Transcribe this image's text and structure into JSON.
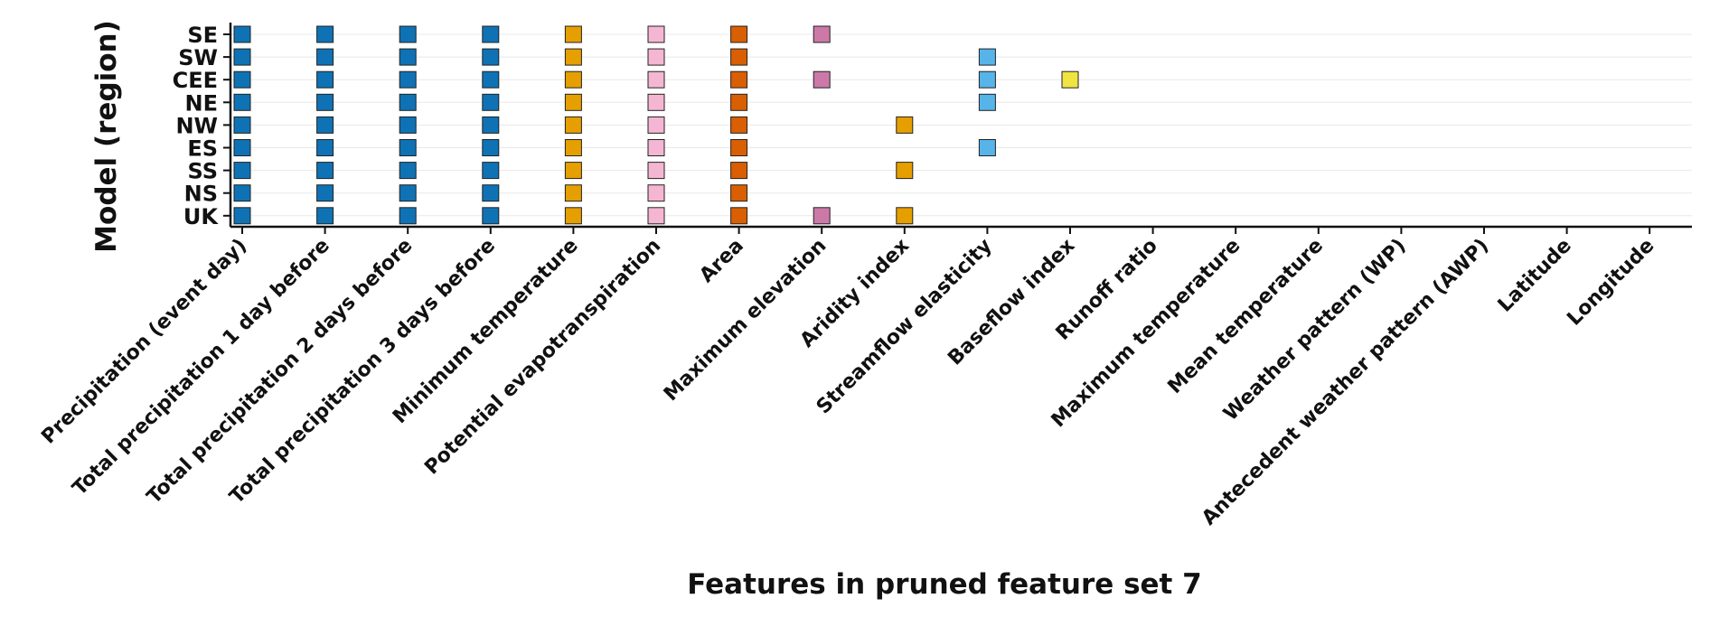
{
  "chart_data": {
    "type": "scatter",
    "title": "",
    "xlabel": "Features in pruned feature set 7",
    "ylabel": "Model (region)",
    "grid": "horizontal",
    "categories_x": [
      "Precipitation (event day)",
      "Total precipitation 1 day before",
      "Total precipitation 2 days before",
      "Total precipitation 3 days before",
      "Minimum temperature",
      "Potential evapotranspiration",
      "Area",
      "Maximum elevation",
      "Aridity index",
      "Streamflow elasticity",
      "Baseflow index",
      "Runoff ratio",
      "Maximum temperature",
      "Mean temperature",
      "Weather pattern (WP)",
      "Antecedent weather pattern (AWP)",
      "Latitude",
      "Longitude"
    ],
    "categories_y": [
      "SE",
      "SW",
      "CEE",
      "NE",
      "NW",
      "ES",
      "SS",
      "NS",
      "UK"
    ],
    "feature_colors": [
      "#0f72b5",
      "#0f72b5",
      "#0f72b5",
      "#0f72b5",
      "#e69f00",
      "#f5b6d3",
      "#d95f02",
      "#cc79a7",
      "#e69f00",
      "#56b4e9",
      "#f0e442",
      "#999999",
      "#999999",
      "#999999",
      "#999999",
      "#999999",
      "#999999",
      "#999999"
    ],
    "points": [
      {
        "model": "SE",
        "features": [
          "Precipitation (event day)",
          "Total precipitation 1 day before",
          "Total precipitation 2 days before",
          "Total precipitation 3 days before",
          "Minimum temperature",
          "Potential evapotranspiration",
          "Area",
          "Maximum elevation"
        ]
      },
      {
        "model": "SW",
        "features": [
          "Precipitation (event day)",
          "Total precipitation 1 day before",
          "Total precipitation 2 days before",
          "Total precipitation 3 days before",
          "Minimum temperature",
          "Potential evapotranspiration",
          "Area",
          "Streamflow elasticity"
        ]
      },
      {
        "model": "CEE",
        "features": [
          "Precipitation (event day)",
          "Total precipitation 1 day before",
          "Total precipitation 2 days before",
          "Total precipitation 3 days before",
          "Minimum temperature",
          "Potential evapotranspiration",
          "Area",
          "Maximum elevation",
          "Streamflow elasticity",
          "Baseflow index"
        ]
      },
      {
        "model": "NE",
        "features": [
          "Precipitation (event day)",
          "Total precipitation 1 day before",
          "Total precipitation 2 days before",
          "Total precipitation 3 days before",
          "Minimum temperature",
          "Potential evapotranspiration",
          "Area",
          "Streamflow elasticity"
        ]
      },
      {
        "model": "NW",
        "features": [
          "Precipitation (event day)",
          "Total precipitation 1 day before",
          "Total precipitation 2 days before",
          "Total precipitation 3 days before",
          "Minimum temperature",
          "Potential evapotranspiration",
          "Area",
          "Aridity index"
        ]
      },
      {
        "model": "ES",
        "features": [
          "Precipitation (event day)",
          "Total precipitation 1 day before",
          "Total precipitation 2 days before",
          "Total precipitation 3 days before",
          "Minimum temperature",
          "Potential evapotranspiration",
          "Area",
          "Streamflow elasticity"
        ]
      },
      {
        "model": "SS",
        "features": [
          "Precipitation (event day)",
          "Total precipitation 1 day before",
          "Total precipitation 2 days before",
          "Total precipitation 3 days before",
          "Minimum temperature",
          "Potential evapotranspiration",
          "Area",
          "Aridity index"
        ]
      },
      {
        "model": "NS",
        "features": [
          "Precipitation (event day)",
          "Total precipitation 1 day before",
          "Total precipitation 2 days before",
          "Total precipitation 3 days before",
          "Minimum temperature",
          "Potential evapotranspiration",
          "Area"
        ]
      },
      {
        "model": "UK",
        "features": [
          "Precipitation (event day)",
          "Total precipitation 1 day before",
          "Total precipitation 2 days before",
          "Total precipitation 3 days before",
          "Minimum temperature",
          "Potential evapotranspiration",
          "Area",
          "Maximum elevation",
          "Aridity index"
        ]
      }
    ]
  }
}
